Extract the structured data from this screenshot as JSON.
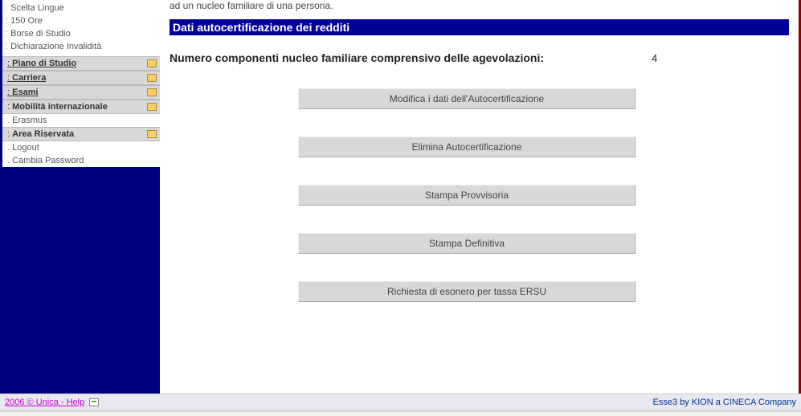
{
  "colors": {
    "blue_dark": "#000080",
    "blue_bar": "#000099",
    "sidebar_header_bg": "#d8d8d8",
    "button_bg": "#d8d8d8",
    "red_border": "#8b0000",
    "footer_link": "#cc00cc",
    "footer_right": "#003399"
  },
  "sidebar": {
    "items_top": [
      "Scelta Lingue",
      "150 Ore",
      "Borse di Studio",
      "Dichiarazione Invalidità"
    ],
    "sections": [
      {
        "label": "Piano di Studio",
        "subitems": []
      },
      {
        "label": "Carriera",
        "subitems": []
      },
      {
        "label": "Esami",
        "subitems": []
      },
      {
        "label": "Mobilità internazionale",
        "subitems": [
          "Erasmus"
        ],
        "no_underline": true
      },
      {
        "label": "Area Riservata",
        "subitems": [
          "Logout",
          "Cambia Password"
        ],
        "no_underline": true
      }
    ]
  },
  "main": {
    "intro": "ad un nucleo familiare di una persona.",
    "section_title": "Dati autocertificazione dei redditi",
    "numero_label": "Numero componenti nucleo familiare comprensivo delle agevolazioni:",
    "numero_value": "4",
    "buttons": {
      "modifica": "Modifica i dati dell'Autocertificazione",
      "elimina": "Elimina   Autocertificazione",
      "stampa_prov": "Stampa   Provvisoria",
      "stampa_def": "Stampa  Definitiva",
      "richiesta": "Richiesta di esonero per tassa ERSU"
    }
  },
  "footer": {
    "left": "2006 © Unica - Help",
    "right": "Esse3 by KION a CINECA Company"
  }
}
